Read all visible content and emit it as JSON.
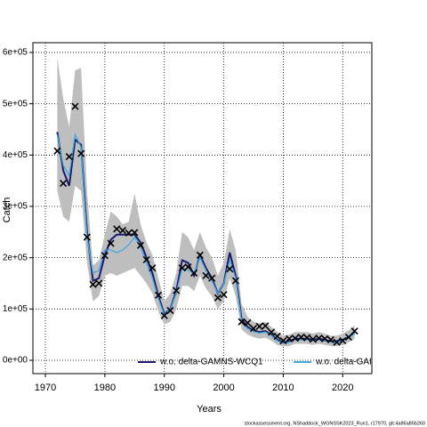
{
  "chart_data": {
    "type": "line",
    "xlabel": "Years",
    "ylabel": "Catch",
    "footer": "stockassessment.org, NShaddock_WGNSSK2023_Run1, r17970, git:4a86a85b260",
    "x": [
      1972,
      1973,
      1974,
      1975,
      1976,
      1977,
      1978,
      1979,
      1980,
      1981,
      1982,
      1983,
      1984,
      1985,
      1986,
      1987,
      1988,
      1989,
      1990,
      1991,
      1992,
      1993,
      1994,
      1995,
      1996,
      1997,
      1998,
      1999,
      2000,
      2001,
      2002,
      2003,
      2004,
      2005,
      2006,
      2007,
      2008,
      2009,
      2010,
      2011,
      2012,
      2013,
      2014,
      2015,
      2016,
      2017,
      2018,
      2019,
      2020,
      2021,
      2022
    ],
    "band": {
      "color": "#bebebe",
      "upper": [
        590000,
        510000,
        455000,
        565000,
        570000,
        330000,
        185000,
        195000,
        245000,
        290000,
        280000,
        265000,
        270000,
        325000,
        265000,
        230000,
        205000,
        160000,
        115000,
        130000,
        170000,
        250000,
        240000,
        215000,
        250000,
        220000,
        200000,
        165000,
        190000,
        255000,
        215000,
        110000,
        85000,
        75000,
        72000,
        75000,
        65000,
        55000,
        48000,
        50000,
        55000,
        55000,
        55000,
        52000,
        55000,
        52000,
        48000,
        48000,
        52000,
        58000,
        68000
      ],
      "lower": [
        330000,
        280000,
        270000,
        340000,
        330000,
        190000,
        115000,
        125000,
        165000,
        170000,
        165000,
        170000,
        175000,
        180000,
        165000,
        150000,
        130000,
        95000,
        70000,
        75000,
        100000,
        145000,
        145000,
        135000,
        165000,
        140000,
        125000,
        100000,
        115000,
        160000,
        125000,
        60000,
        50000,
        45000,
        42000,
        44000,
        38000,
        30000,
        27000,
        28000,
        32000,
        32000,
        32000,
        30000,
        32000,
        30000,
        28000,
        28000,
        30000,
        35000,
        42000
      ]
    },
    "series": [
      {
        "name": "w.o. delta-GAMNS-WCQ1",
        "color": "#1a1a6e",
        "values": [
          445000,
          370000,
          340000,
          430000,
          420000,
          250000,
          155000,
          160000,
          205000,
          235000,
          245000,
          245000,
          245000,
          245000,
          230000,
          200000,
          170000,
          125000,
          90000,
          100000,
          135000,
          195000,
          190000,
          165000,
          205000,
          180000,
          160000,
          130000,
          150000,
          210000,
          165000,
          80000,
          65000,
          58000,
          55000,
          57000,
          50000,
          40000,
          35000,
          37000,
          42000,
          42000,
          42000,
          40000,
          42000,
          40000,
          37000,
          37000,
          40000,
          45000,
          55000
        ]
      },
      {
        "name": "w.o. delta-GAI",
        "color": "#3fa9e0",
        "values": [
          440000,
          380000,
          360000,
          440000,
          415000,
          240000,
          170000,
          175000,
          215000,
          215000,
          210000,
          215000,
          225000,
          240000,
          220000,
          190000,
          160000,
          120000,
          88000,
          100000,
          130000,
          180000,
          175000,
          170000,
          200000,
          175000,
          155000,
          130000,
          150000,
          195000,
          160000,
          75000,
          62000,
          56000,
          53000,
          55000,
          48000,
          38000,
          33000,
          35000,
          40000,
          40000,
          40000,
          38000,
          40000,
          38000,
          35000,
          35000,
          38000,
          43000,
          52000
        ]
      }
    ],
    "observed": {
      "color": "#000000",
      "marker": "x",
      "values": [
        408000,
        345000,
        397000,
        495000,
        403000,
        240000,
        148000,
        150000,
        204000,
        228000,
        256000,
        253000,
        248000,
        249000,
        224000,
        196000,
        180000,
        127000,
        87000,
        97000,
        136000,
        180000,
        182000,
        170000,
        205000,
        165000,
        160000,
        122000,
        128000,
        178000,
        155000,
        75000,
        73000,
        62000,
        66000,
        67000,
        55000,
        47000,
        38000,
        42000,
        43000,
        45000,
        44000,
        41000,
        43000,
        42000,
        40000,
        35000,
        38000,
        45000,
        57000
      ]
    },
    "xlim": [
      1967.9,
      2024.9
    ],
    "ylim": [
      -26000,
      619000
    ],
    "xticks": [
      1970,
      1980,
      1990,
      2000,
      2010,
      2020
    ],
    "yticks": [
      {
        "value": 0,
        "label": "0e+00"
      },
      {
        "value": 100000,
        "label": "1e+05"
      },
      {
        "value": 200000,
        "label": "2e+05"
      },
      {
        "value": 300000,
        "label": "3e+05"
      },
      {
        "value": 400000,
        "label": "4e+05"
      },
      {
        "value": 500000,
        "label": "5e+05"
      },
      {
        "value": 600000,
        "label": "6e+05"
      }
    ],
    "grid": true,
    "legend": "bottom"
  }
}
